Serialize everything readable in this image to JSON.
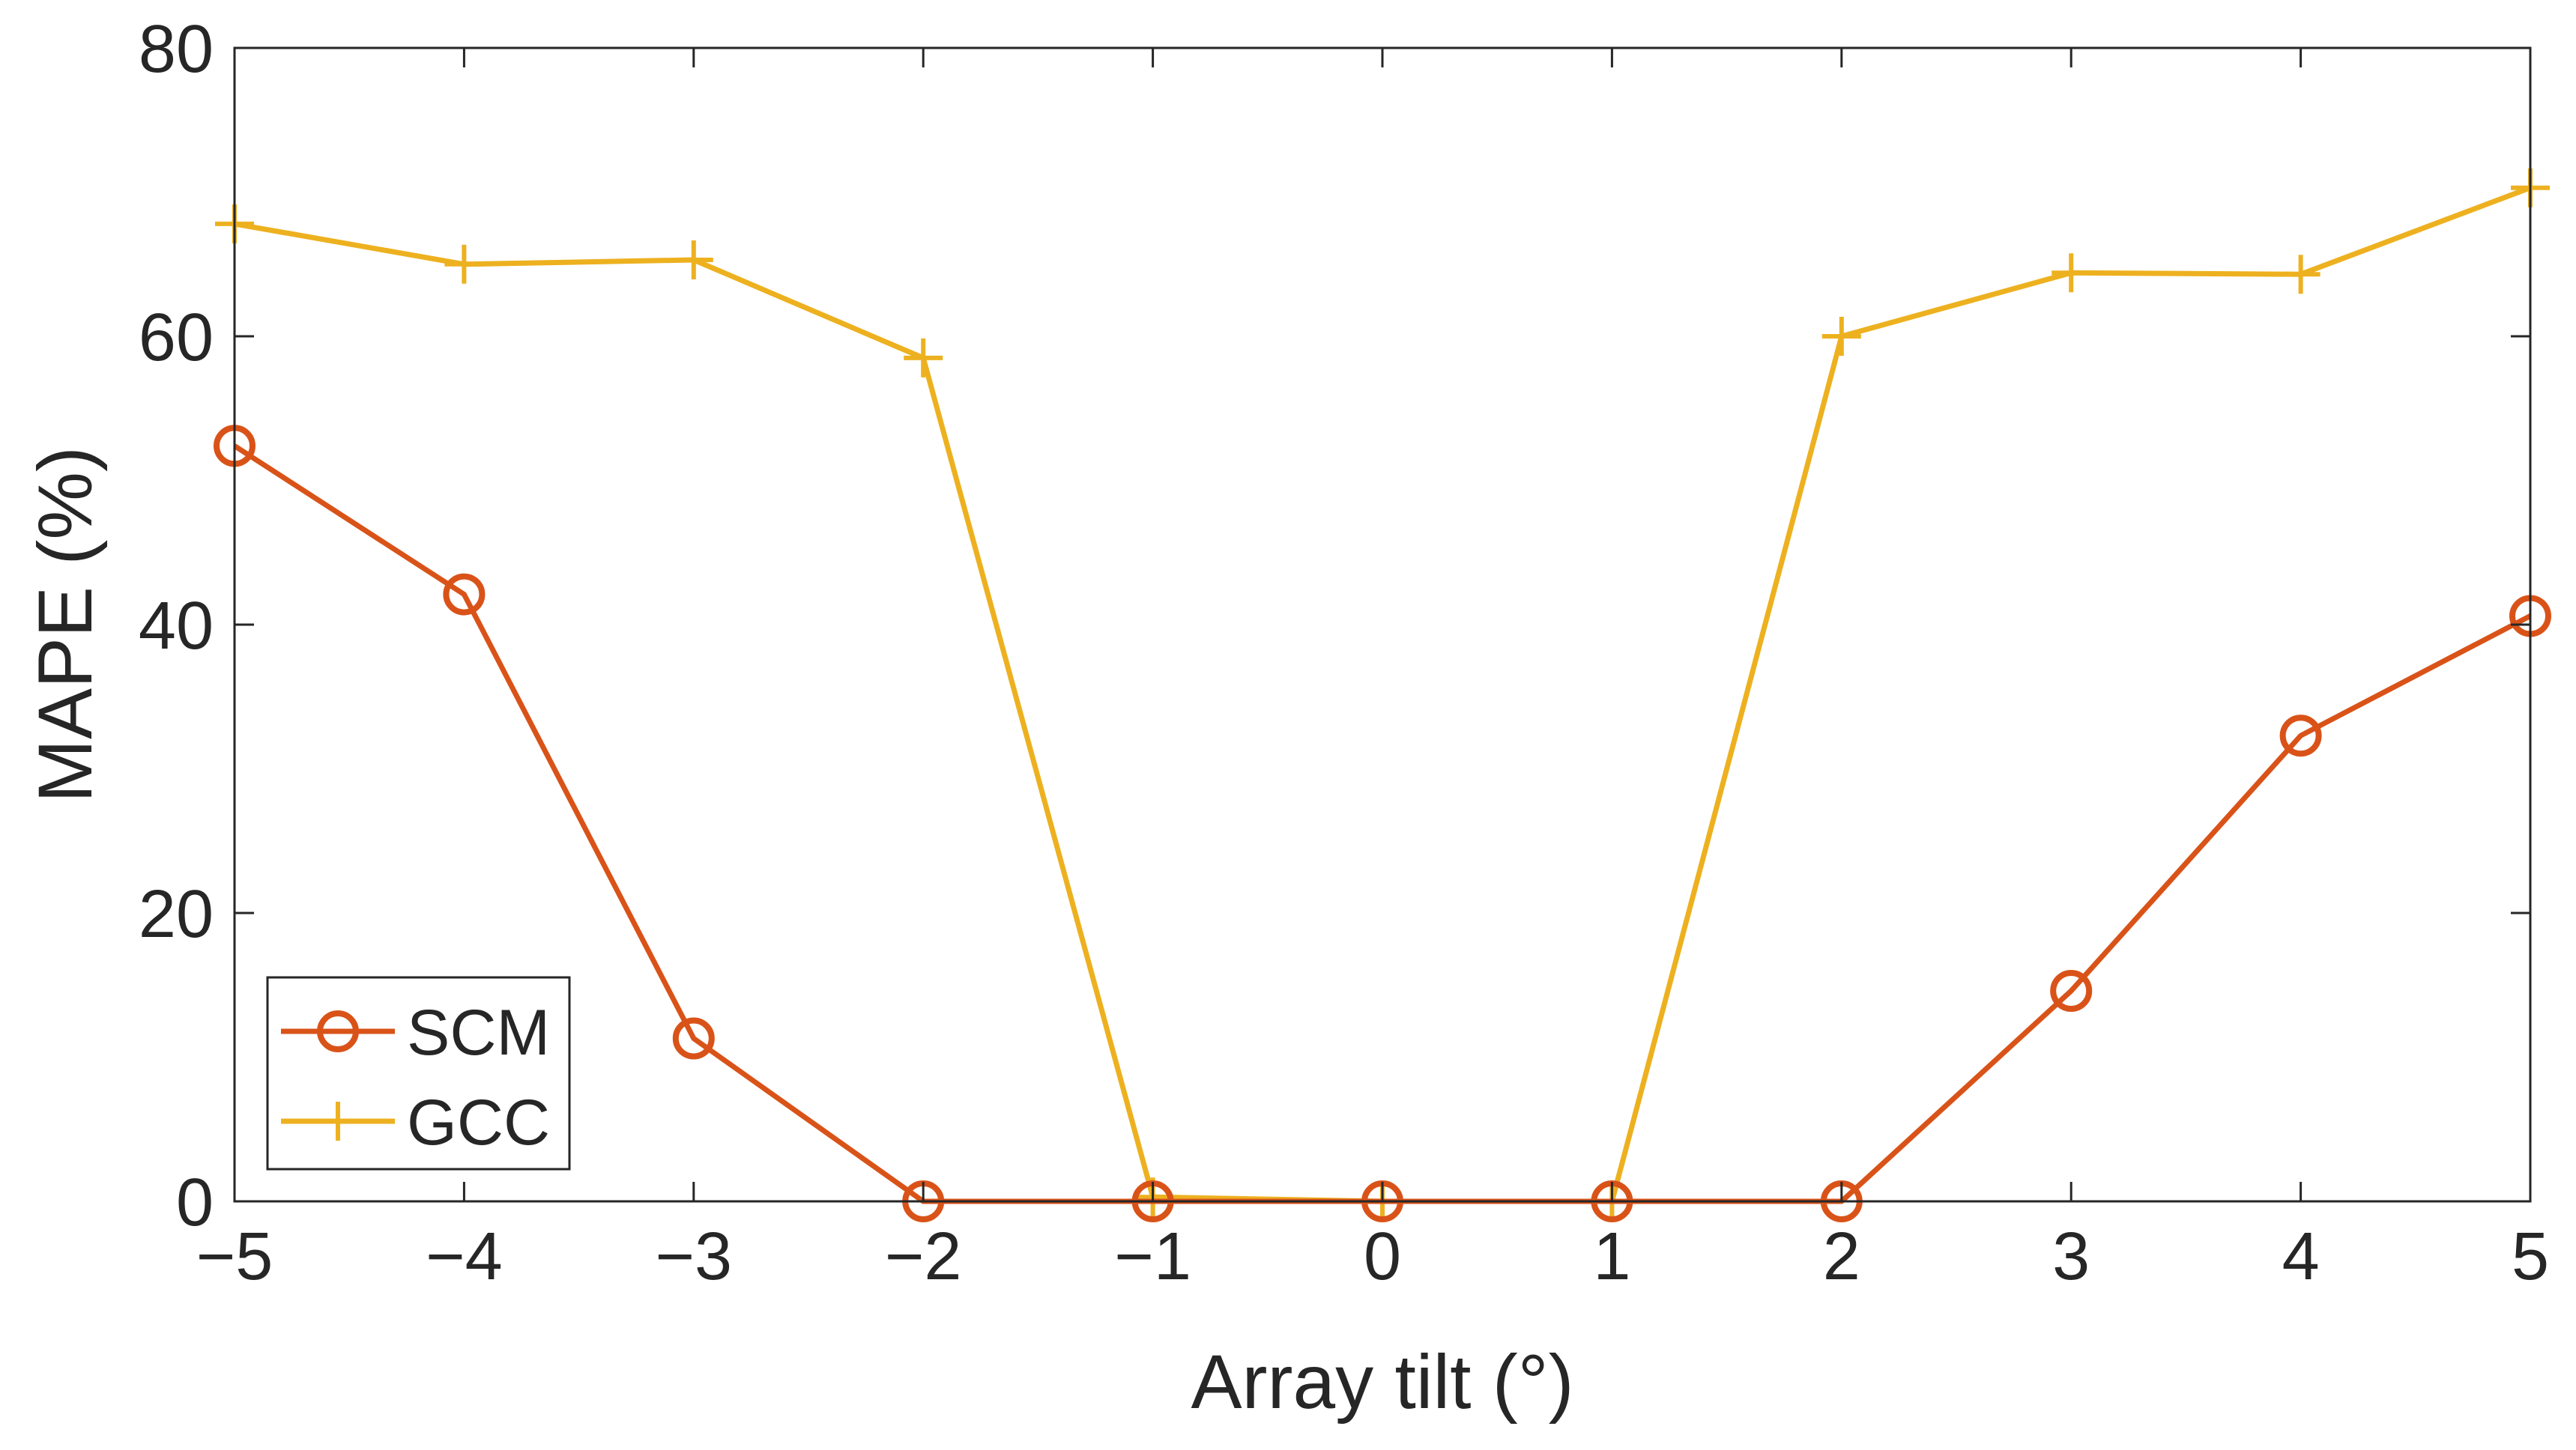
{
  "chart_data": {
    "type": "line",
    "title": "",
    "xlabel": "Array tilt (°)",
    "ylabel": "MAPE (%)",
    "xlim": [
      -5,
      5
    ],
    "ylim": [
      0,
      80
    ],
    "x_ticks": [
      -5,
      -4,
      -3,
      -2,
      -1,
      0,
      1,
      2,
      3,
      4,
      5
    ],
    "x_tick_labels": [
      "−5",
      "−4",
      "−3",
      "−2",
      "−1",
      "0",
      "1",
      "2",
      "3",
      "4",
      "5"
    ],
    "y_ticks": [
      0,
      20,
      40,
      60,
      80
    ],
    "y_tick_labels": [
      "0",
      "20",
      "40",
      "60",
      "80"
    ],
    "grid": false,
    "legend_position": "bottom-left",
    "x": [
      -5,
      -4,
      -3,
      -2,
      -1,
      0,
      1,
      2,
      3,
      4,
      5
    ],
    "series": [
      {
        "name": "SCM",
        "color": "#D95319",
        "marker": "circle",
        "values": [
          52.4,
          42.1,
          11.3,
          0.0,
          0.0,
          0.0,
          0.0,
          0.0,
          14.6,
          32.3,
          40.6
        ]
      },
      {
        "name": "GCC",
        "color": "#EDB120",
        "marker": "plus",
        "values": [
          67.8,
          65.0,
          65.3,
          58.5,
          0.3,
          0.0,
          0.0,
          60.0,
          64.4,
          64.3,
          70.3
        ]
      }
    ]
  }
}
